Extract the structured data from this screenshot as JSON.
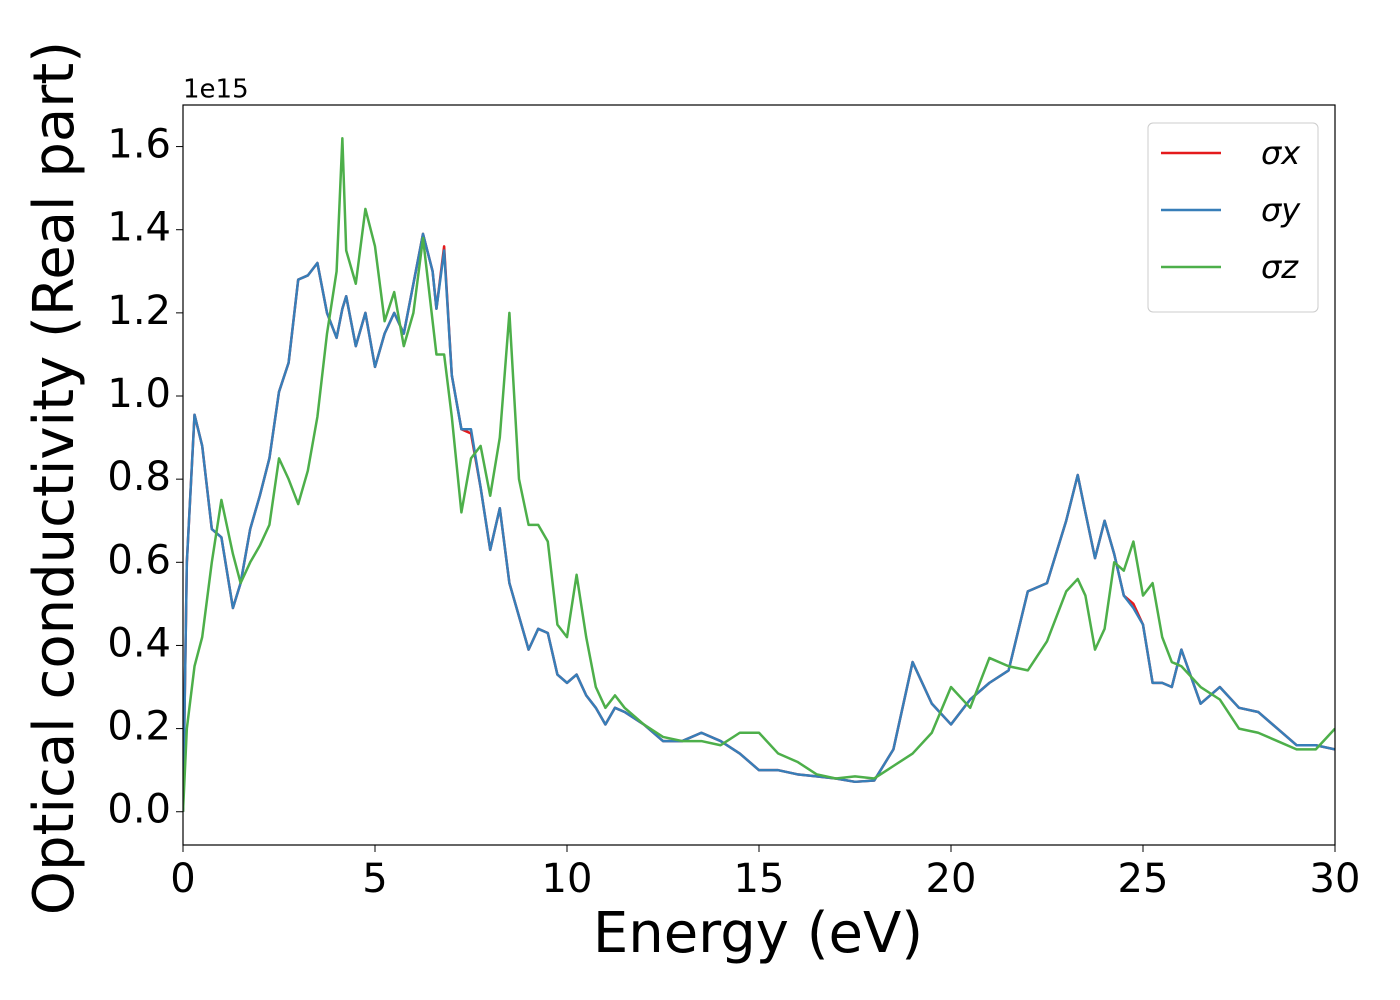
{
  "chart_data": {
    "type": "line",
    "xlabel": "Energy (eV)",
    "ylabel": "Optical conductivity (Real part)",
    "y_offset_label": "1e15",
    "x": [
      0,
      0.1,
      0.3,
      0.5,
      0.75,
      1,
      1.3,
      1.5,
      1.75,
      2,
      2.25,
      2.5,
      2.75,
      3,
      3.25,
      3.5,
      3.75,
      4,
      4.15,
      4.25,
      4.5,
      4.75,
      5,
      5.25,
      5.5,
      5.75,
      6,
      6.25,
      6.5,
      6.6,
      6.8,
      7,
      7.25,
      7.5,
      7.75,
      8,
      8.25,
      8.5,
      8.75,
      9,
      9.25,
      9.5,
      9.75,
      10,
      10.25,
      10.5,
      10.75,
      11,
      11.25,
      11.5,
      12,
      12.5,
      13,
      13.5,
      14,
      14.5,
      15,
      15.5,
      16,
      16.5,
      17,
      17.5,
      18,
      18.5,
      19,
      19.5,
      20,
      20.5,
      21,
      21.5,
      22,
      22.5,
      23,
      23.3,
      23.5,
      23.75,
      24,
      24.25,
      24.5,
      24.75,
      25,
      25.25,
      25.5,
      25.75,
      26,
      26.5,
      27,
      27.5,
      28,
      28.5,
      29,
      29.5,
      30
    ],
    "series": [
      {
        "name": "σx",
        "color": "#e41a1c",
        "values": [
          0,
          0.6,
          0.955,
          0.88,
          0.68,
          0.66,
          0.49,
          0.55,
          0.68,
          0.76,
          0.85,
          1.01,
          1.08,
          1.28,
          1.29,
          1.32,
          1.2,
          1.14,
          1.21,
          1.24,
          1.12,
          1.2,
          1.07,
          1.15,
          1.2,
          1.15,
          1.27,
          1.39,
          1.3,
          1.21,
          1.36,
          1.05,
          0.92,
          0.91,
          0.78,
          0.63,
          0.73,
          0.55,
          0.47,
          0.39,
          0.44,
          0.43,
          0.33,
          0.31,
          0.33,
          0.28,
          0.25,
          0.21,
          0.25,
          0.24,
          0.21,
          0.17,
          0.17,
          0.19,
          0.17,
          0.14,
          0.1,
          0.1,
          0.09,
          0.085,
          0.08,
          0.072,
          0.075,
          0.15,
          0.36,
          0.26,
          0.21,
          0.27,
          0.31,
          0.34,
          0.53,
          0.55,
          0.7,
          0.81,
          0.72,
          0.61,
          0.7,
          0.62,
          0.52,
          0.5,
          0.45,
          0.31,
          0.31,
          0.3,
          0.39,
          0.26,
          0.3,
          0.25,
          0.24,
          0.2,
          0.16,
          0.16,
          0.15
        ]
      },
      {
        "name": "σy",
        "color": "#377eb8",
        "values": [
          0,
          0.6,
          0.955,
          0.88,
          0.68,
          0.66,
          0.49,
          0.55,
          0.68,
          0.76,
          0.85,
          1.01,
          1.08,
          1.28,
          1.29,
          1.32,
          1.2,
          1.14,
          1.21,
          1.24,
          1.12,
          1.2,
          1.07,
          1.15,
          1.2,
          1.15,
          1.27,
          1.39,
          1.3,
          1.21,
          1.35,
          1.05,
          0.92,
          0.92,
          0.78,
          0.63,
          0.73,
          0.55,
          0.47,
          0.39,
          0.44,
          0.43,
          0.33,
          0.31,
          0.33,
          0.28,
          0.25,
          0.21,
          0.25,
          0.24,
          0.21,
          0.17,
          0.17,
          0.19,
          0.17,
          0.14,
          0.1,
          0.1,
          0.09,
          0.085,
          0.08,
          0.072,
          0.075,
          0.15,
          0.36,
          0.26,
          0.21,
          0.27,
          0.31,
          0.34,
          0.53,
          0.55,
          0.7,
          0.81,
          0.72,
          0.61,
          0.7,
          0.62,
          0.52,
          0.49,
          0.45,
          0.31,
          0.31,
          0.3,
          0.39,
          0.26,
          0.3,
          0.25,
          0.24,
          0.2,
          0.16,
          0.16,
          0.15
        ]
      },
      {
        "name": "σz",
        "color": "#4daf4a",
        "values": [
          0,
          0.2,
          0.35,
          0.42,
          0.6,
          0.75,
          0.62,
          0.55,
          0.6,
          0.64,
          0.69,
          0.85,
          0.8,
          0.74,
          0.82,
          0.95,
          1.15,
          1.3,
          1.62,
          1.35,
          1.27,
          1.45,
          1.36,
          1.18,
          1.25,
          1.12,
          1.2,
          1.38,
          1.18,
          1.1,
          1.1,
          0.95,
          0.72,
          0.85,
          0.88,
          0.76,
          0.9,
          1.2,
          0.8,
          0.69,
          0.69,
          0.65,
          0.45,
          0.42,
          0.57,
          0.42,
          0.3,
          0.25,
          0.28,
          0.25,
          0.21,
          0.18,
          0.17,
          0.17,
          0.16,
          0.19,
          0.19,
          0.14,
          0.12,
          0.09,
          0.08,
          0.085,
          0.08,
          0.11,
          0.14,
          0.19,
          0.3,
          0.25,
          0.37,
          0.35,
          0.34,
          0.41,
          0.53,
          0.56,
          0.52,
          0.39,
          0.44,
          0.6,
          0.58,
          0.65,
          0.52,
          0.55,
          0.42,
          0.36,
          0.35,
          0.3,
          0.27,
          0.2,
          0.19,
          0.17,
          0.15,
          0.15,
          0.2
        ]
      }
    ],
    "xlim": [
      0,
      30
    ],
    "xticks": [
      0,
      5,
      10,
      15,
      20,
      25,
      30
    ],
    "ylim": [
      -0.08,
      1.7
    ],
    "yticks": [
      {
        "value": 0,
        "label": "0.0"
      },
      {
        "value": 0.2,
        "label": "0.2"
      },
      {
        "value": 0.4,
        "label": "0.4"
      },
      {
        "value": 0.6,
        "label": "0.6"
      },
      {
        "value": 0.8,
        "label": "0.8"
      },
      {
        "value": 1.0,
        "label": "1.0"
      },
      {
        "value": 1.2,
        "label": "1.2"
      },
      {
        "value": 1.4,
        "label": "1.4"
      },
      {
        "value": 1.6,
        "label": "1.6"
      }
    ],
    "grid": false,
    "legend": "upper right"
  }
}
